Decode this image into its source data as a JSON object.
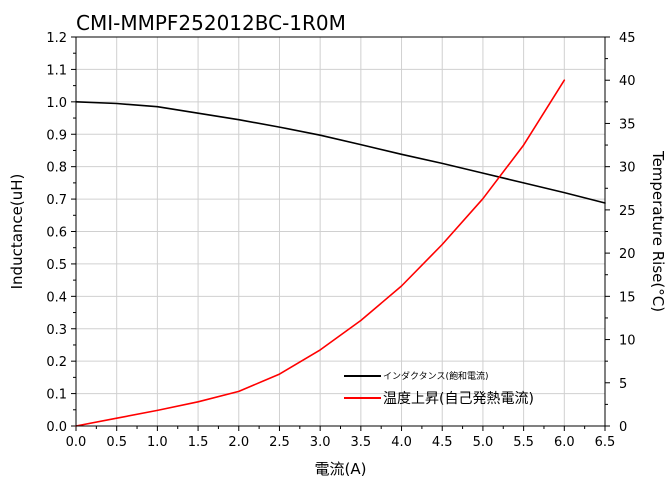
{
  "chart_data": {
    "type": "line",
    "title": "CMI-MMPF252012BC-1R0M",
    "xlabel": "電流(A)",
    "ylabel": "Inductance(uH)",
    "y2label": "Temperature Rise(°C)",
    "xlim": [
      0,
      6.5
    ],
    "ylim": [
      0,
      1.2
    ],
    "y2lim": [
      0,
      45
    ],
    "x_ticks": [
      "0.0",
      "0.5",
      "1.0",
      "1.5",
      "2.0",
      "2.5",
      "3.0",
      "3.5",
      "4.0",
      "4.5",
      "5.0",
      "5.5",
      "6.0",
      "6.5"
    ],
    "y_ticks": [
      "0.0",
      "0.1",
      "0.2",
      "0.3",
      "0.4",
      "0.5",
      "0.6",
      "0.7",
      "0.8",
      "0.9",
      "1.0",
      "1.1",
      "1.2"
    ],
    "y2_ticks": [
      "0",
      "5",
      "10",
      "15",
      "20",
      "25",
      "30",
      "35",
      "40",
      "45"
    ],
    "grid": true,
    "legend_position": "bottom-right",
    "series": [
      {
        "name": "インダクタンス(飽和電流)",
        "axis": "left",
        "color": "#000000",
        "x": [
          0,
          0.5,
          1.0,
          1.5,
          2.0,
          2.5,
          3.0,
          3.5,
          4.0,
          4.5,
          5.0,
          5.5,
          6.0,
          6.5
        ],
        "y": [
          1.0,
          0.995,
          0.985,
          0.965,
          0.945,
          0.922,
          0.897,
          0.868,
          0.838,
          0.81,
          0.78,
          0.75,
          0.72,
          0.688
        ]
      },
      {
        "name": "温度上昇(自己発熱電流)",
        "axis": "right",
        "color": "#ff0000",
        "x": [
          0,
          0.5,
          1.0,
          1.5,
          2.0,
          2.5,
          3.0,
          3.5,
          4.0,
          4.5,
          5.0,
          5.5,
          6.0
        ],
        "y": [
          0,
          0.9,
          1.8,
          2.8,
          4.0,
          6.0,
          8.8,
          12.2,
          16.2,
          21.0,
          26.3,
          32.5,
          40.0
        ]
      }
    ]
  }
}
